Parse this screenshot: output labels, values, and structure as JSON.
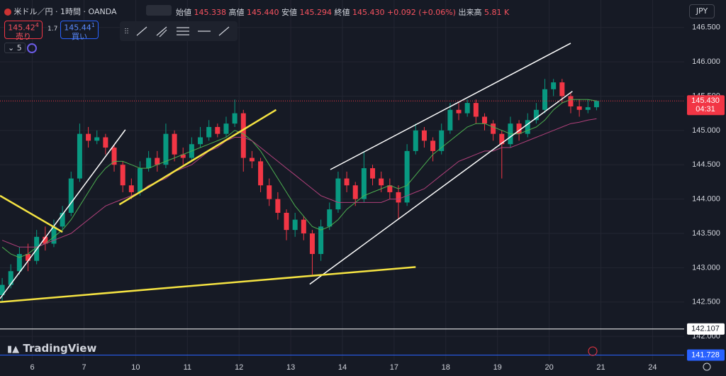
{
  "header": {
    "symbol": "米ドル／円 · 1時間 · OANDA",
    "ohlc": [
      {
        "label": "始値",
        "value": "145.338"
      },
      {
        "label": "高値",
        "value": "145.440"
      },
      {
        "label": "安値",
        "value": "145.294"
      },
      {
        "label": "終値",
        "value": "145.430"
      }
    ],
    "change": "+0.092 (+0.06%)",
    "volume_label": "出来高",
    "volume": "5.81 K",
    "sell": {
      "price": "145.42",
      "pip": "4",
      "label": "売り"
    },
    "spread": "1.7",
    "buy": {
      "price": "145.44",
      "pip": "1",
      "label": "買い"
    },
    "indicators": "5",
    "currency": "JPY",
    "branding": "TradingView"
  },
  "chart_data": {
    "type": "candlestick",
    "categories": [
      null,
      null,
      null,
      null,
      "6",
      null,
      null,
      null,
      null,
      null,
      "7",
      null,
      null,
      null,
      null,
      null,
      "10",
      null,
      null,
      null,
      null,
      null,
      "11",
      null,
      null,
      null,
      null,
      null,
      "12",
      null,
      null,
      null,
      null,
      null,
      "13",
      null,
      null,
      null,
      null,
      null,
      "14",
      null,
      null,
      null,
      null,
      null,
      "17",
      null,
      null,
      null,
      null,
      null,
      "18",
      null,
      null,
      null,
      null,
      null,
      "19",
      null,
      null,
      null,
      null,
      null,
      "20",
      null,
      null,
      null,
      null,
      null,
      "21",
      null,
      null,
      null,
      null,
      null,
      "24",
      null,
      null,
      null
    ],
    "open": [
      142.6,
      142.75,
      142.95,
      143.2,
      143.1,
      143.45,
      143.35,
      143.6,
      143.8,
      144.3,
      144.95,
      144.85,
      144.9,
      144.75,
      144.5,
      144.2,
      144.1,
      144.45,
      144.6,
      144.5,
      144.95,
      144.65,
      144.6,
      144.8,
      144.9,
      145.05,
      144.95,
      145.1,
      145.25,
      144.6,
      144.55,
      144.2,
      144.0,
      143.8,
      143.55,
      143.7,
      143.5,
      143.2,
      143.6,
      143.85,
      144.3,
      144.2,
      144.0,
      144.45,
      144.3,
      144.2,
      144.1,
      143.95,
      144.7,
      145.0,
      144.85,
      144.7,
      145.0,
      145.3,
      145.25,
      145.4,
      145.2,
      145.1,
      144.95,
      144.8,
      145.1,
      144.95,
      145.15,
      145.3,
      145.6,
      145.7,
      145.5,
      145.35,
      145.3,
      145.338,
      null,
      null,
      null,
      null,
      null,
      null,
      null,
      null,
      null,
      null
    ],
    "high": [
      142.85,
      143.05,
      143.3,
      143.35,
      143.55,
      143.6,
      143.7,
      143.9,
      144.4,
      145.1,
      145.05,
      145.0,
      144.95,
      144.8,
      144.55,
      144.3,
      144.55,
      144.7,
      144.7,
      145.1,
      145.0,
      144.75,
      144.9,
      145.05,
      145.15,
      145.1,
      145.2,
      145.45,
      145.3,
      144.7,
      144.6,
      144.3,
      144.1,
      143.85,
      143.8,
      143.75,
      143.55,
      143.7,
      143.95,
      144.4,
      144.4,
      144.25,
      144.7,
      144.5,
      144.4,
      144.3,
      144.2,
      144.8,
      145.1,
      145.05,
      144.9,
      145.1,
      145.4,
      145.4,
      145.45,
      145.45,
      145.25,
      145.15,
      145.0,
      145.2,
      145.15,
      145.25,
      145.4,
      145.75,
      145.75,
      145.75,
      145.55,
      145.45,
      145.45,
      145.44,
      null,
      null,
      null,
      null,
      null,
      null,
      null,
      null,
      null,
      null
    ],
    "low": [
      142.5,
      142.7,
      142.9,
      142.95,
      143.05,
      143.25,
      143.3,
      143.55,
      143.75,
      144.25,
      144.75,
      144.8,
      144.65,
      144.4,
      144.1,
      144.0,
      144.05,
      144.4,
      144.4,
      144.45,
      144.55,
      144.5,
      144.55,
      144.75,
      144.85,
      144.9,
      144.9,
      145.05,
      144.4,
      144.45,
      144.1,
      143.9,
      143.7,
      143.4,
      143.45,
      143.4,
      142.9,
      143.1,
      143.55,
      143.8,
      144.1,
      143.9,
      143.95,
      144.2,
      144.1,
      144.0,
      143.7,
      143.9,
      144.65,
      144.75,
      144.55,
      144.65,
      144.95,
      145.15,
      145.2,
      145.1,
      145.0,
      144.85,
      144.3,
      144.75,
      144.85,
      144.9,
      145.1,
      145.25,
      145.5,
      145.4,
      145.25,
      145.2,
      145.25,
      145.294,
      null,
      null,
      null,
      null,
      null,
      null,
      null,
      null,
      null,
      null
    ],
    "close": [
      142.75,
      142.95,
      143.2,
      143.1,
      143.45,
      143.35,
      143.6,
      143.8,
      144.3,
      144.95,
      144.85,
      144.9,
      144.75,
      144.5,
      144.2,
      144.1,
      144.45,
      144.6,
      144.5,
      144.95,
      144.65,
      144.6,
      144.8,
      144.9,
      145.05,
      144.95,
      145.1,
      145.25,
      144.6,
      144.55,
      144.2,
      144.0,
      143.8,
      143.55,
      143.7,
      143.5,
      143.2,
      143.6,
      143.85,
      144.3,
      144.2,
      144.0,
      144.45,
      144.3,
      144.2,
      144.1,
      143.95,
      144.7,
      145.0,
      144.85,
      144.7,
      145.0,
      145.3,
      145.25,
      145.4,
      145.2,
      145.1,
      144.95,
      144.8,
      145.1,
      144.95,
      145.15,
      145.3,
      145.6,
      145.7,
      145.5,
      145.35,
      145.3,
      145.338,
      145.43,
      null,
      null,
      null,
      null,
      null,
      null,
      null,
      null,
      null,
      null
    ],
    "up_color": "#089981",
    "down_color": "#f23645",
    "moving_averages": [
      {
        "color": "#4caf50",
        "values": [
          143.3,
          143.2,
          143.15,
          143.2,
          143.3,
          143.35,
          143.45,
          143.55,
          143.7,
          143.9,
          144.1,
          144.3,
          144.45,
          144.55,
          144.55,
          144.5,
          144.45,
          144.45,
          144.5,
          144.55,
          144.6,
          144.65,
          144.7,
          144.75,
          144.8,
          144.85,
          144.9,
          145.0,
          144.95,
          144.85,
          144.7,
          144.5,
          144.3,
          144.1,
          143.9,
          143.75,
          143.6,
          143.55,
          143.6,
          143.7,
          143.85,
          143.95,
          144.05,
          144.1,
          144.15,
          144.2,
          144.15,
          144.2,
          144.35,
          144.5,
          144.65,
          144.75,
          144.85,
          144.95,
          145.05,
          145.1,
          145.1,
          145.05,
          145.0,
          144.95,
          144.95,
          145.0,
          145.05,
          145.15,
          145.3,
          145.4,
          145.45,
          145.45,
          145.45,
          145.43,
          null,
          null,
          null,
          null,
          null,
          null,
          null,
          null,
          null,
          null
        ]
      },
      {
        "color": "#b0407a",
        "values": [
          143.4,
          143.35,
          143.3,
          143.3,
          143.3,
          143.35,
          143.4,
          143.45,
          143.5,
          143.6,
          143.7,
          143.8,
          143.9,
          143.95,
          144.0,
          144.05,
          144.1,
          144.2,
          144.25,
          144.3,
          144.4,
          144.45,
          144.5,
          144.6,
          144.7,
          144.75,
          144.85,
          144.9,
          144.9,
          144.85,
          144.75,
          144.65,
          144.55,
          144.45,
          144.35,
          144.25,
          144.15,
          144.05,
          144.0,
          143.95,
          143.95,
          143.95,
          143.95,
          143.95,
          143.95,
          144.0,
          144.0,
          144.05,
          144.1,
          144.15,
          144.25,
          144.35,
          144.45,
          144.55,
          144.6,
          144.65,
          144.7,
          144.7,
          144.75,
          144.75,
          144.8,
          144.85,
          144.9,
          144.95,
          145.0,
          145.05,
          145.1,
          145.12,
          145.15,
          145.17,
          null,
          null,
          null,
          null,
          null,
          null,
          null,
          null,
          null,
          null
        ]
      }
    ],
    "drawings": [
      {
        "color": "#ffffff",
        "x": [
          0.25,
          14.8
        ],
        "y": [
          142.55,
          145.01
        ]
      },
      {
        "color": "#ffffff",
        "x": [
          38.6,
          66.5
        ],
        "y": [
          144.43,
          146.27
        ]
      },
      {
        "color": "#ffffff",
        "x": [
          36.2,
          66.7
        ],
        "y": [
          142.76,
          145.57
        ]
      },
      {
        "color": "#f5e342",
        "x": [
          0.25,
          7.5
        ],
        "y": [
          144.05,
          143.52
        ]
      },
      {
        "color": "#f5e342",
        "x": [
          14.1,
          32.3
        ],
        "y": [
          143.92,
          145.3
        ]
      },
      {
        "color": "#f5e342",
        "x": [
          0.25,
          48.5
        ],
        "y": [
          142.5,
          143.01
        ]
      }
    ],
    "levels": [
      {
        "value": 142.107,
        "color": "#ffffff"
      },
      {
        "value": 141.728,
        "color": "#2962ff"
      }
    ],
    "last_price": {
      "value": 145.43,
      "label": "145.430"
    },
    "countdown": "04:31",
    "ylim": [
      141.65,
      146.9
    ],
    "yticks": [
      {
        "value": 142,
        "label": "142.000"
      },
      {
        "value": 142.5,
        "label": "142.500"
      },
      {
        "value": 143,
        "label": "143.000"
      },
      {
        "value": 143.5,
        "label": "143.500"
      },
      {
        "value": 144,
        "label": "144.000"
      },
      {
        "value": 144.5,
        "label": "144.500"
      },
      {
        "value": 145,
        "label": "145.000"
      },
      {
        "value": 145.5,
        "label": "145.500"
      },
      {
        "value": 146,
        "label": "146.000"
      },
      {
        "value": 146.5,
        "label": "146.500"
      }
    ],
    "grid": true
  }
}
